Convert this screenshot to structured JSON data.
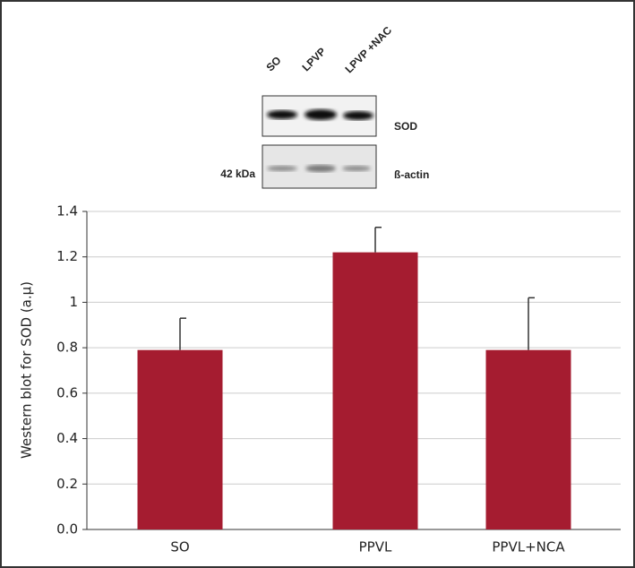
{
  "blot": {
    "lanes": [
      "SO",
      "LPVP",
      "LPVP +NAC"
    ],
    "bands": [
      "SOD",
      "ß-actin"
    ],
    "marker": "42 kDa"
  },
  "chart_data": {
    "type": "bar",
    "y_label": "Western blot for SOD (a.µ)",
    "categories": [
      "SO",
      "PPVL",
      "PPVL+NCA"
    ],
    "values": [
      0.79,
      1.22,
      0.79
    ],
    "errors": [
      0.14,
      0.11,
      0.23
    ],
    "color": "#a51c30",
    "ylim": [
      0,
      1.4
    ],
    "yticks": [
      {
        "value": 0,
        "label": "0.0"
      },
      0.2,
      0.4,
      0.6,
      0.8,
      1,
      1.2,
      1.4
    ],
    "grid": true
  }
}
